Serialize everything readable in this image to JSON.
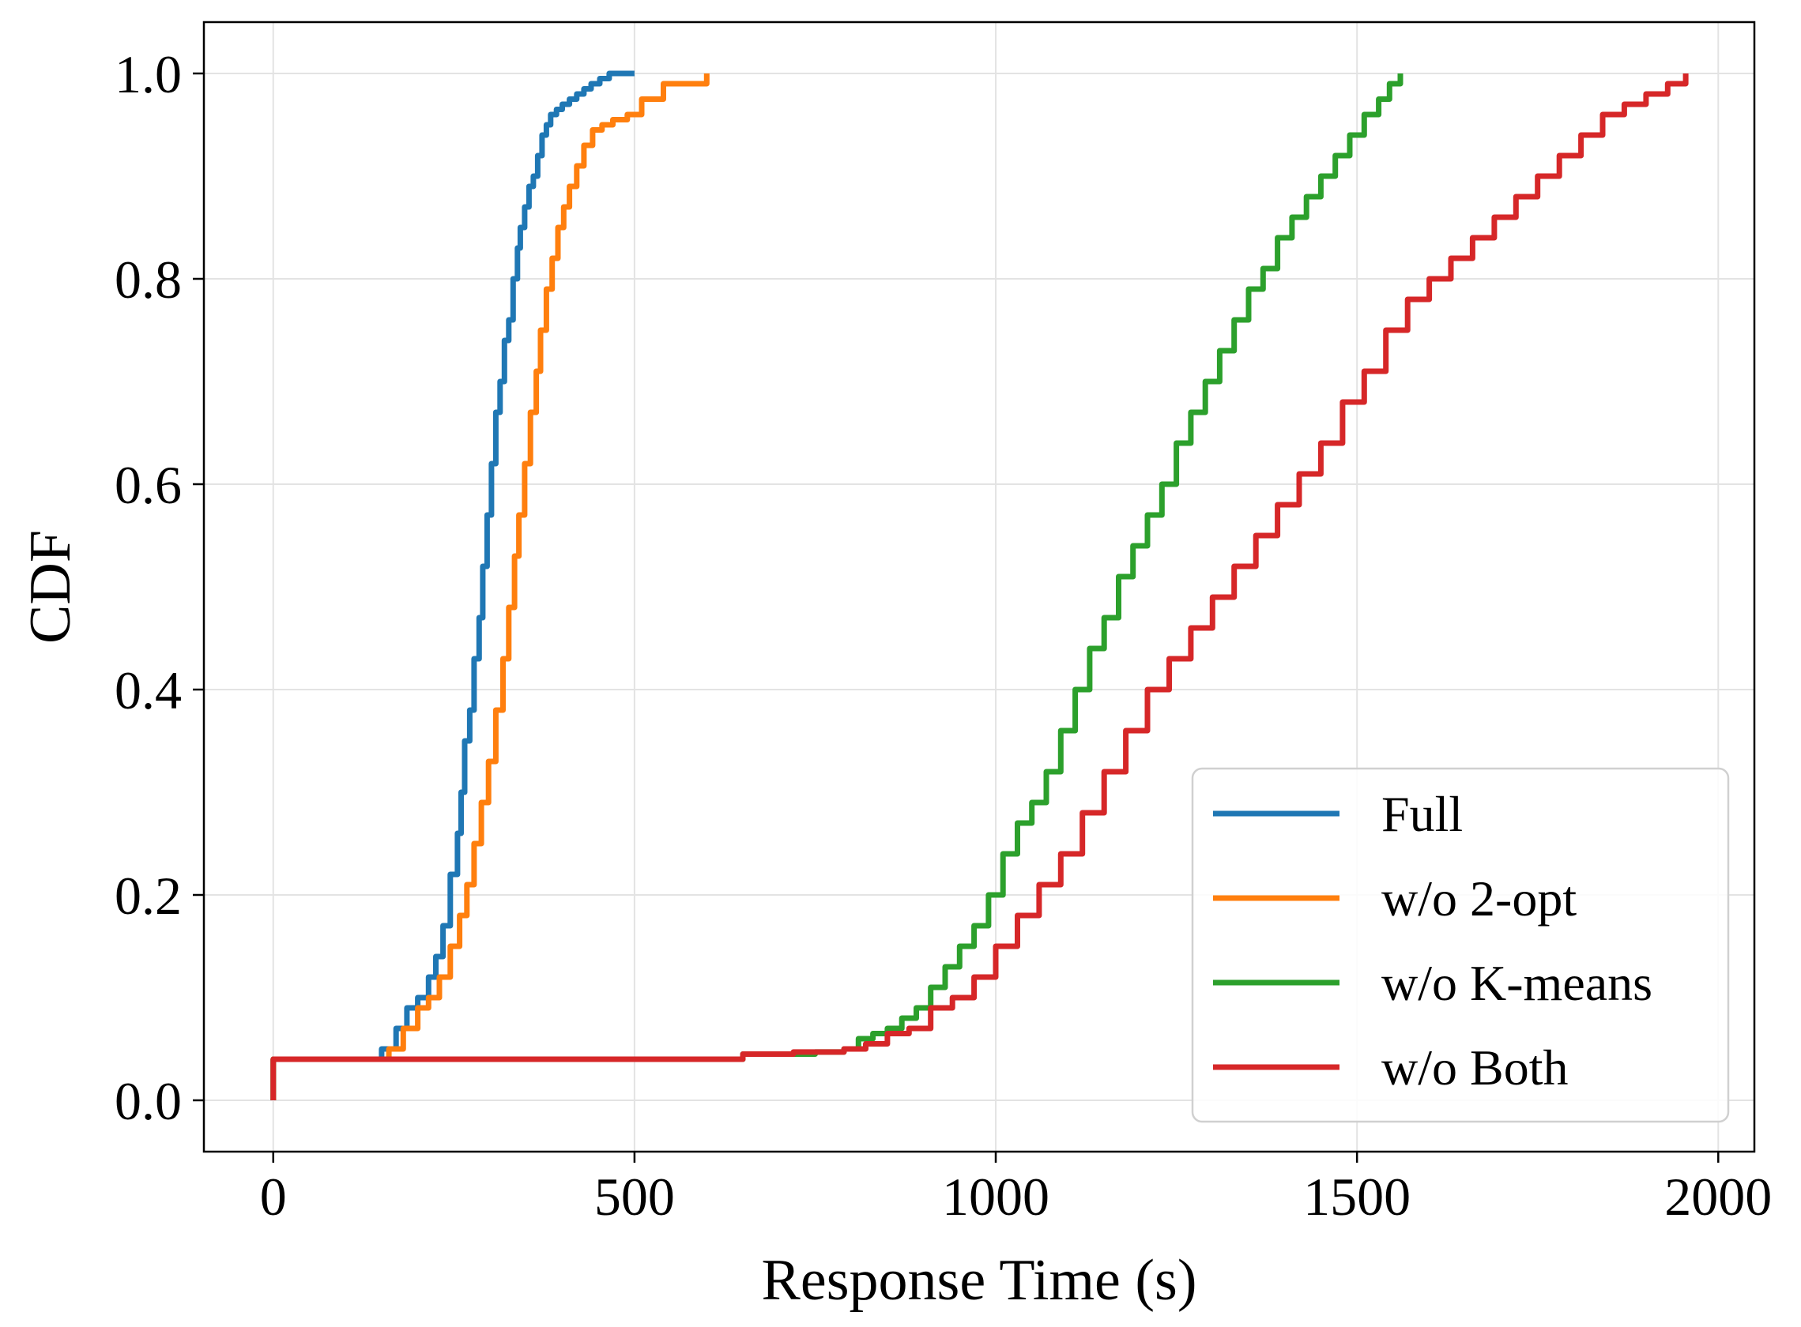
{
  "chart_data": {
    "type": "line",
    "title": "",
    "xlabel": "Response Time (s)",
    "ylabel": "CDF",
    "xlim": [
      -96,
      2050
    ],
    "ylim": [
      -0.05,
      1.05
    ],
    "xticks": [
      0,
      500,
      1000,
      1500,
      2000
    ],
    "xtick_labels": [
      "0",
      "500",
      "1000",
      "1500",
      "2000"
    ],
    "yticks": [
      0.0,
      0.2,
      0.4,
      0.6,
      0.8,
      1.0
    ],
    "ytick_labels": [
      "0.0",
      "0.2",
      "0.4",
      "0.6",
      "0.8",
      "1.0"
    ],
    "grid": true,
    "legend_position": "lower-right",
    "series": [
      {
        "name": "Full",
        "color": "#1f77b4",
        "x": [
          0,
          0,
          130,
          150,
          170,
          185,
          200,
          215,
          225,
          235,
          245,
          255,
          260,
          265,
          272,
          278,
          285,
          290,
          296,
          302,
          308,
          314,
          320,
          326,
          332,
          338,
          342,
          348,
          354,
          360,
          366,
          372,
          378,
          384,
          392,
          400,
          410,
          420,
          430,
          440,
          452,
          465,
          480,
          500
        ],
        "y": [
          0.0,
          0.04,
          0.04,
          0.05,
          0.07,
          0.09,
          0.1,
          0.12,
          0.14,
          0.17,
          0.22,
          0.26,
          0.3,
          0.35,
          0.38,
          0.43,
          0.47,
          0.52,
          0.57,
          0.62,
          0.67,
          0.7,
          0.74,
          0.76,
          0.8,
          0.83,
          0.85,
          0.87,
          0.89,
          0.9,
          0.92,
          0.94,
          0.95,
          0.96,
          0.965,
          0.97,
          0.975,
          0.98,
          0.985,
          0.99,
          0.995,
          1.0,
          1.0,
          1.0
        ]
      },
      {
        "name": "w/o 2-opt",
        "color": "#ff7f0e",
        "x": [
          0,
          0,
          140,
          160,
          180,
          200,
          215,
          230,
          245,
          258,
          268,
          278,
          288,
          298,
          308,
          318,
          326,
          334,
          340,
          348,
          356,
          364,
          370,
          378,
          386,
          394,
          402,
          410,
          420,
          430,
          442,
          455,
          470,
          490,
          510,
          540,
          570,
          600
        ],
        "y": [
          0.0,
          0.04,
          0.04,
          0.05,
          0.07,
          0.09,
          0.1,
          0.12,
          0.15,
          0.18,
          0.21,
          0.25,
          0.29,
          0.33,
          0.38,
          0.43,
          0.48,
          0.53,
          0.57,
          0.62,
          0.67,
          0.71,
          0.75,
          0.79,
          0.82,
          0.85,
          0.87,
          0.89,
          0.91,
          0.93,
          0.945,
          0.95,
          0.955,
          0.96,
          0.975,
          0.99,
          0.99,
          1.0
        ]
      },
      {
        "name": "w/o K-means",
        "color": "#2ca02c",
        "x": [
          0,
          0,
          600,
          650,
          700,
          750,
          790,
          810,
          830,
          850,
          870,
          890,
          910,
          930,
          950,
          970,
          990,
          1010,
          1030,
          1050,
          1070,
          1090,
          1110,
          1130,
          1150,
          1170,
          1190,
          1210,
          1230,
          1250,
          1270,
          1290,
          1310,
          1330,
          1350,
          1370,
          1390,
          1410,
          1430,
          1450,
          1470,
          1490,
          1510,
          1530,
          1545,
          1560
        ],
        "y": [
          0.0,
          0.04,
          0.04,
          0.045,
          0.045,
          0.047,
          0.05,
          0.06,
          0.065,
          0.07,
          0.08,
          0.09,
          0.11,
          0.13,
          0.15,
          0.17,
          0.2,
          0.24,
          0.27,
          0.29,
          0.32,
          0.36,
          0.4,
          0.44,
          0.47,
          0.51,
          0.54,
          0.57,
          0.6,
          0.64,
          0.67,
          0.7,
          0.73,
          0.76,
          0.79,
          0.81,
          0.84,
          0.86,
          0.88,
          0.9,
          0.92,
          0.94,
          0.96,
          0.975,
          0.99,
          1.0
        ]
      },
      {
        "name": "w/o Both",
        "color": "#d62728",
        "x": [
          0,
          0,
          580,
          650,
          720,
          790,
          820,
          850,
          880,
          910,
          940,
          970,
          1000,
          1030,
          1060,
          1090,
          1120,
          1150,
          1180,
          1210,
          1240,
          1270,
          1300,
          1330,
          1360,
          1390,
          1420,
          1450,
          1480,
          1510,
          1540,
          1570,
          1600,
          1630,
          1660,
          1690,
          1720,
          1750,
          1780,
          1810,
          1840,
          1870,
          1900,
          1930,
          1955
        ],
        "y": [
          0.0,
          0.04,
          0.04,
          0.045,
          0.047,
          0.05,
          0.055,
          0.065,
          0.07,
          0.09,
          0.1,
          0.12,
          0.15,
          0.18,
          0.21,
          0.24,
          0.28,
          0.32,
          0.36,
          0.4,
          0.43,
          0.46,
          0.49,
          0.52,
          0.55,
          0.58,
          0.61,
          0.64,
          0.68,
          0.71,
          0.75,
          0.78,
          0.8,
          0.82,
          0.84,
          0.86,
          0.88,
          0.9,
          0.92,
          0.94,
          0.96,
          0.97,
          0.98,
          0.99,
          1.0
        ]
      }
    ]
  }
}
